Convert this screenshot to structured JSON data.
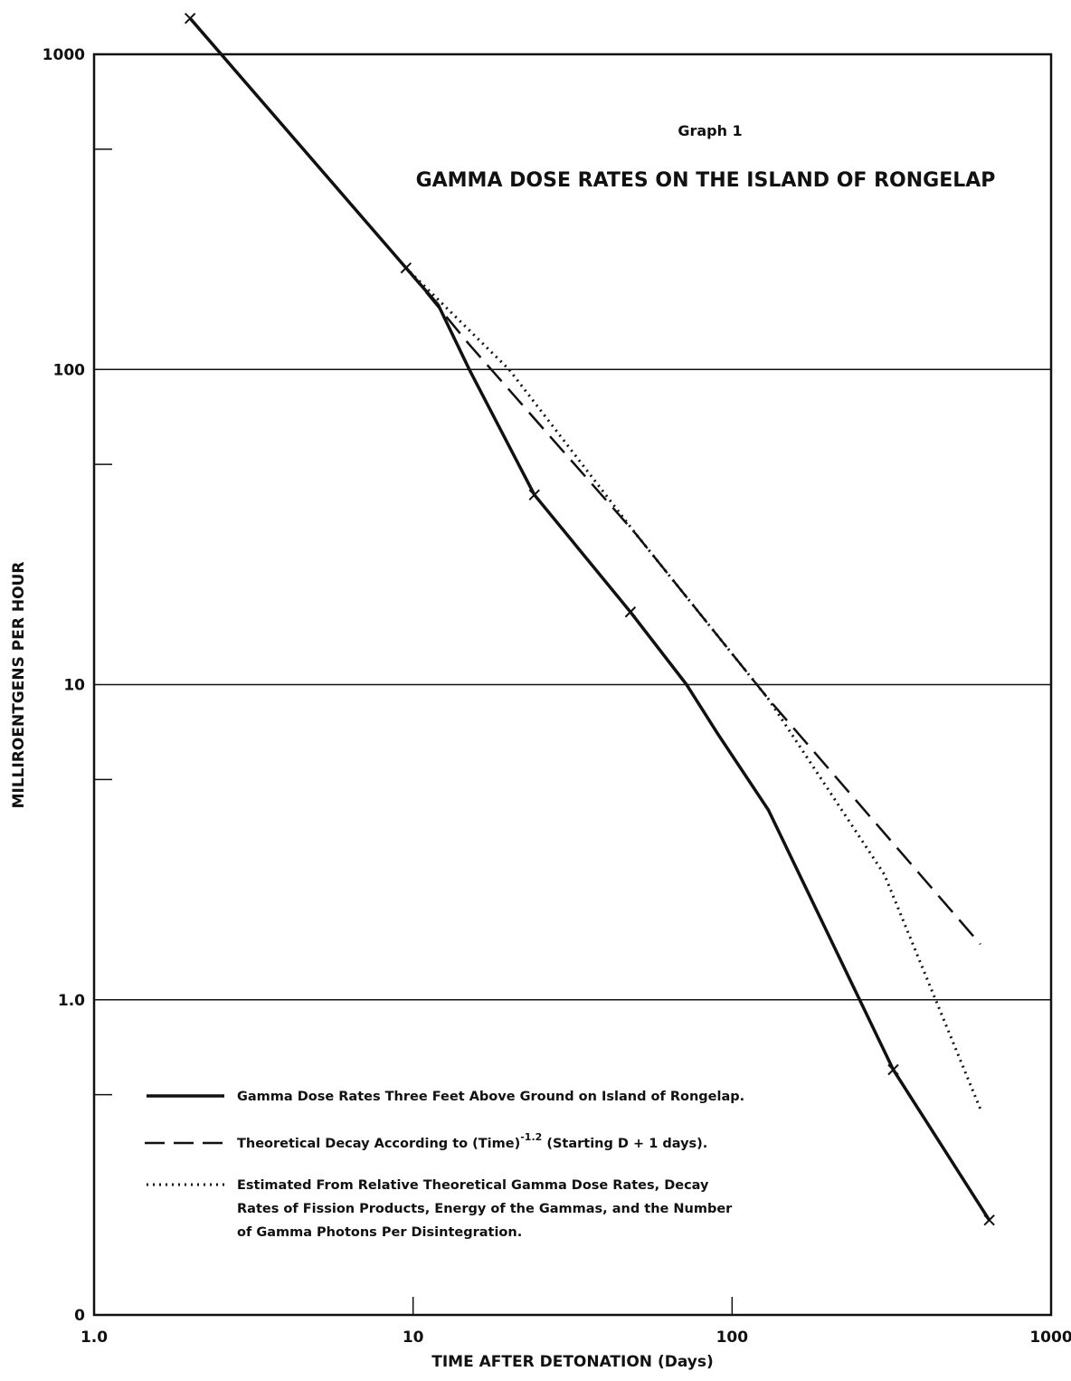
{
  "chart_data": {
    "type": "line",
    "title": "GAMMA DOSE RATES ON THE ISLAND OF RONGELAP",
    "subtitle": "Graph 1",
    "xlabel": "TIME AFTER DETONATION (Days)",
    "ylabel": "MILLIROENTGENS PER HOUR",
    "xscale": "log",
    "yscale": "log",
    "xlim": [
      1,
      1000
    ],
    "ylim": [
      0.1,
      1000
    ],
    "x_ticks": [
      {
        "value": 1,
        "label": "1.0"
      },
      {
        "value": 10,
        "label": "10"
      },
      {
        "value": 100,
        "label": "100"
      },
      {
        "value": 1000,
        "label": "1000"
      }
    ],
    "y_ticks": [
      {
        "value": 0.1,
        "label": "0"
      },
      {
        "value": 1,
        "label": "1.0"
      },
      {
        "value": 10,
        "label": "10"
      },
      {
        "value": 100,
        "label": "100"
      },
      {
        "value": 1000,
        "label": "1000"
      }
    ],
    "y_minor_ticks": [
      0.5,
      5,
      50,
      500
    ],
    "grid": "horizontal lines at 1, 10, 100",
    "legend_position": "bottom-left",
    "series": [
      {
        "name": "Gamma Dose Rates Three Feet Above Ground on Island of Rongelap.",
        "style": "solid",
        "x": [
          2.0,
          9.5,
          12.0,
          15.0,
          24.0,
          48.0,
          72.0,
          90.0,
          130.0,
          320.0,
          640.0
        ],
        "y": [
          1300,
          210,
          160,
          100,
          40,
          17,
          10,
          7,
          4,
          0.6,
          0.2
        ],
        "marked_points": [
          {
            "x": 2.0,
            "y": 1300
          },
          {
            "x": 9.5,
            "y": 210
          },
          {
            "x": 24.0,
            "y": 40
          },
          {
            "x": 48.0,
            "y": 17
          },
          {
            "x": 320.0,
            "y": 0.6
          },
          {
            "x": 640.0,
            "y": 0.2
          }
        ]
      },
      {
        "name": "Theoretical Decay According to (Time)⁻¹·² (Starting D + 1 days).",
        "style": "dashed",
        "x": [
          9.5,
          15.0,
          50.0,
          130.0,
          600.0
        ],
        "y": [
          210,
          120,
          30,
          9,
          1.5
        ]
      },
      {
        "name": "Estimated From Relative Theoretical Gamma Dose Rates, Decay Rates of Fission Products, Energy of the Gammas, and the Number of Gamma Photons Per Disintegration.",
        "style": "dotted",
        "x": [
          2.0,
          9.5,
          20.0,
          50.0,
          130.0,
          300.0,
          600.0
        ],
        "y": [
          1300,
          210,
          100,
          30,
          9,
          2.5,
          0.45
        ]
      }
    ]
  },
  "legend": {
    "solid": "Gamma Dose Rates Three Feet Above Ground on Island of Rongelap.",
    "dashed_before": "Theoretical Decay According to (Time)",
    "dashed_sup": "-1.2",
    "dashed_after": " (Starting D + 1 days).",
    "dotted_1": "Estimated From Relative Theoretical Gamma Dose Rates, Decay",
    "dotted_2": "Rates of Fission Products, Energy of the Gammas, and the Number",
    "dotted_3": "of Gamma Photons Per Disintegration."
  },
  "colors": {
    "ink": "#111111",
    "background": "#ffffff"
  }
}
